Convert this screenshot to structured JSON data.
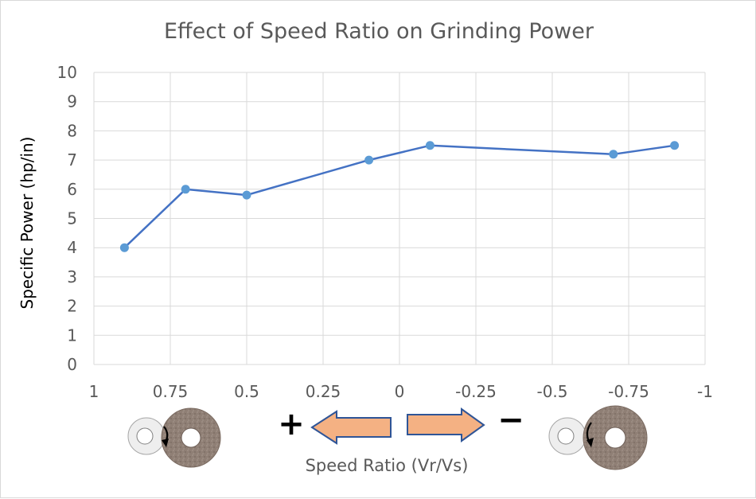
{
  "chart_data": {
    "type": "line",
    "title": "Effect of Speed Ratio on Grinding Power",
    "xlabel": "Speed Ratio  (Vr/Vs)",
    "ylabel": "Specific Power (hp/in)",
    "xlim": [
      1,
      -1
    ],
    "ylim": [
      0,
      10
    ],
    "x_ticks": [
      "1",
      "0.75",
      "0.5",
      "0.25",
      "0",
      "-0.25",
      "-0.5",
      "-0.75",
      "-1"
    ],
    "y_ticks": [
      "0",
      "1",
      "2",
      "3",
      "4",
      "5",
      "6",
      "7",
      "8",
      "9",
      "10"
    ],
    "grid": true,
    "series": [
      {
        "color": "#4472c4",
        "marker_color": "#5b9bd5",
        "x": [
          0.9,
          0.7,
          0.5,
          0.1,
          -0.1,
          -0.7,
          -0.9
        ],
        "y": [
          4.0,
          6.0,
          5.8,
          7.0,
          7.5,
          7.2,
          7.5
        ]
      }
    ],
    "annotations": {
      "positive_sign": "+",
      "negative_sign": "−",
      "arrow_color": "#f4b183"
    }
  }
}
